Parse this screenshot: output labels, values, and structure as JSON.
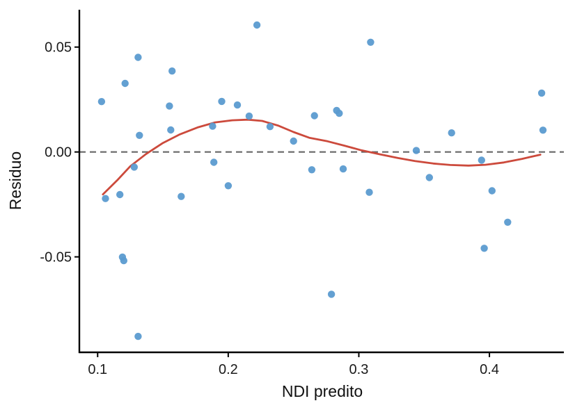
{
  "chart_data": {
    "type": "scatter",
    "xlabel": "NDI predito",
    "ylabel": "Residuo",
    "xlim": [
      0.086,
      0.457
    ],
    "ylim": [
      -0.0955,
      0.0678
    ],
    "x_ticks": [
      {
        "value": 0.1,
        "label": "0.1"
      },
      {
        "value": 0.2,
        "label": "0.2"
      },
      {
        "value": 0.3,
        "label": "0.3"
      },
      {
        "value": 0.4,
        "label": "0.4"
      }
    ],
    "y_ticks": [
      {
        "value": 0.05,
        "label": "0.05"
      },
      {
        "value": 0.0,
        "label": "0.00"
      },
      {
        "value": -0.05,
        "label": "-0.05"
      }
    ],
    "grid": false,
    "reference_line": {
      "y": 0,
      "style": "dashed",
      "color": "#666666"
    },
    "point_color": "#5b9bd0",
    "smooth_color": "#cc4a3c",
    "points": [
      {
        "x": 0.103,
        "y": 0.024
      },
      {
        "x": 0.106,
        "y": -0.0222
      },
      {
        "x": 0.117,
        "y": -0.0203
      },
      {
        "x": 0.119,
        "y": -0.0501
      },
      {
        "x": 0.12,
        "y": -0.0518
      },
      {
        "x": 0.121,
        "y": 0.0327
      },
      {
        "x": 0.128,
        "y": -0.0072
      },
      {
        "x": 0.131,
        "y": 0.0451
      },
      {
        "x": 0.131,
        "y": -0.0879
      },
      {
        "x": 0.132,
        "y": 0.0079
      },
      {
        "x": 0.155,
        "y": 0.0219
      },
      {
        "x": 0.156,
        "y": 0.0105
      },
      {
        "x": 0.157,
        "y": 0.0386
      },
      {
        "x": 0.164,
        "y": -0.0212
      },
      {
        "x": 0.188,
        "y": 0.0123
      },
      {
        "x": 0.189,
        "y": -0.0049
      },
      {
        "x": 0.195,
        "y": 0.0241
      },
      {
        "x": 0.2,
        "y": -0.0161
      },
      {
        "x": 0.207,
        "y": 0.0224
      },
      {
        "x": 0.216,
        "y": 0.0171
      },
      {
        "x": 0.222,
        "y": 0.0605
      },
      {
        "x": 0.232,
        "y": 0.0121
      },
      {
        "x": 0.25,
        "y": 0.0052
      },
      {
        "x": 0.264,
        "y": -0.0085
      },
      {
        "x": 0.266,
        "y": 0.0173
      },
      {
        "x": 0.279,
        "y": -0.0678
      },
      {
        "x": 0.283,
        "y": 0.0198
      },
      {
        "x": 0.285,
        "y": 0.0184
      },
      {
        "x": 0.288,
        "y": -0.0081
      },
      {
        "x": 0.308,
        "y": -0.0192
      },
      {
        "x": 0.309,
        "y": 0.0523
      },
      {
        "x": 0.344,
        "y": 0.0007
      },
      {
        "x": 0.354,
        "y": -0.0122
      },
      {
        "x": 0.371,
        "y": 0.0091
      },
      {
        "x": 0.394,
        "y": -0.0039
      },
      {
        "x": 0.396,
        "y": -0.0459
      },
      {
        "x": 0.402,
        "y": -0.0185
      },
      {
        "x": 0.414,
        "y": -0.0335
      },
      {
        "x": 0.44,
        "y": 0.0281
      },
      {
        "x": 0.441,
        "y": 0.0104
      }
    ],
    "smooth": [
      {
        "x": 0.104,
        "y": -0.0202
      },
      {
        "x": 0.115,
        "y": -0.0135
      },
      {
        "x": 0.125,
        "y": -0.0068
      },
      {
        "x": 0.137,
        "y": -0.001
      },
      {
        "x": 0.15,
        "y": 0.0043
      },
      {
        "x": 0.163,
        "y": 0.0084
      },
      {
        "x": 0.177,
        "y": 0.0118
      },
      {
        "x": 0.19,
        "y": 0.0141
      },
      {
        "x": 0.203,
        "y": 0.0151
      },
      {
        "x": 0.215,
        "y": 0.0154
      },
      {
        "x": 0.226,
        "y": 0.0148
      },
      {
        "x": 0.238,
        "y": 0.0126
      },
      {
        "x": 0.25,
        "y": 0.0095
      },
      {
        "x": 0.262,
        "y": 0.0068
      },
      {
        "x": 0.276,
        "y": 0.0051
      },
      {
        "x": 0.289,
        "y": 0.003
      },
      {
        "x": 0.302,
        "y": 0.0008
      },
      {
        "x": 0.316,
        "y": -0.0011
      },
      {
        "x": 0.33,
        "y": -0.0029
      },
      {
        "x": 0.343,
        "y": -0.0043
      },
      {
        "x": 0.357,
        "y": -0.0055
      },
      {
        "x": 0.37,
        "y": -0.0062
      },
      {
        "x": 0.384,
        "y": -0.0065
      },
      {
        "x": 0.397,
        "y": -0.0061
      },
      {
        "x": 0.411,
        "y": -0.005
      },
      {
        "x": 0.425,
        "y": -0.0033
      },
      {
        "x": 0.439,
        "y": -0.0013
      }
    ]
  }
}
